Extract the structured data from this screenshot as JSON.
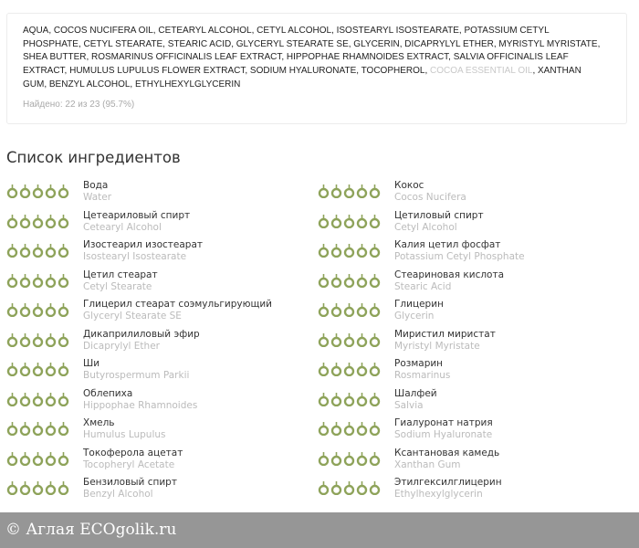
{
  "composition": {
    "inci_parts": [
      {
        "text": "AQUA, COCOS NUCIFERA OIL, CETEARYL ALCOHOL, CETYL ALCOHOL, ISOSTEARYL ISOSTEARATE, POTASSIUM CETYL PHOSPHATE, CETYL STEARATE, STEARIC ACID, GLYCERYL STEARATE SE, GLYCERIN, DICAPRYLYL ETHER, MYRISTYL MYRISTATE, SHEA BUTTER, ROSMARINUS OFFICINALIS LEAF EXTRACT, HIPPOPHAE RHAMNOIDES EXTRACT, SALVIA OFFICINALIS LEAF EXTRACT, HUMULUS LUPULUS FLOWER EXTRACT, SODIUM HYALURONATE, TOCOPHEROL, ",
        "found": true
      },
      {
        "text": "COCOA ESSENTIAL OIL",
        "found": false
      },
      {
        "text": ", XANTHAN GUM, BENZYL ALCOHOL, ETHYLHEXYLGLYCERIN",
        "found": true
      }
    ],
    "found_text": "Найдено: 22 из 23 (95.7%)"
  },
  "section_title": "Список ингредиентов",
  "icon_color": "#8ea35a",
  "rating": 5,
  "ingredients": [
    {
      "name": "Вода",
      "latin": "Water"
    },
    {
      "name": "Кокос",
      "latin": "Cocos Nucifera"
    },
    {
      "name": "Цетеариловый спирт",
      "latin": "Cetearyl Alcohol"
    },
    {
      "name": "Цетиловый спирт",
      "latin": "Cetyl Alcohol"
    },
    {
      "name": "Изостеарил изостеарат",
      "latin": "Isostearyl Isostearate"
    },
    {
      "name": "Калия цетил фосфат",
      "latin": "Potassium Cetyl Phosphate"
    },
    {
      "name": "Цетил стеарат",
      "latin": "Cetyl Stearate"
    },
    {
      "name": "Стеариновая кислота",
      "latin": "Stearic Acid"
    },
    {
      "name": "Глицерил стеарат соэмульгирующий",
      "latin": "Glyceryl Stearate SE"
    },
    {
      "name": "Глицерин",
      "latin": "Glycerin"
    },
    {
      "name": "Дикаприлиловый эфир",
      "latin": "Dicaprylyl Ether"
    },
    {
      "name": "Миристил миристат",
      "latin": "Myristyl Myristate"
    },
    {
      "name": "Ши",
      "latin": "Butyrospermum Parkii"
    },
    {
      "name": "Розмарин",
      "latin": "Rosmarinus"
    },
    {
      "name": "Облепиха",
      "latin": "Hippophae Rhamnoides"
    },
    {
      "name": "Шалфей",
      "latin": "Salvia"
    },
    {
      "name": "Хмель",
      "latin": "Humulus Lupulus"
    },
    {
      "name": "Гиалуронат натрия",
      "latin": "Sodium Hyaluronate"
    },
    {
      "name": "Токоферола ацетат",
      "latin": "Tocopheryl Acetate"
    },
    {
      "name": "Ксантановая камедь",
      "latin": "Xanthan Gum"
    },
    {
      "name": "Бензиловый спирт",
      "latin": "Benzyl Alcohol"
    },
    {
      "name": "Этилгексилглицерин",
      "latin": "Ethylhexylglycerin"
    }
  ],
  "watermark": "© Аглая   ECOgolik.ru"
}
